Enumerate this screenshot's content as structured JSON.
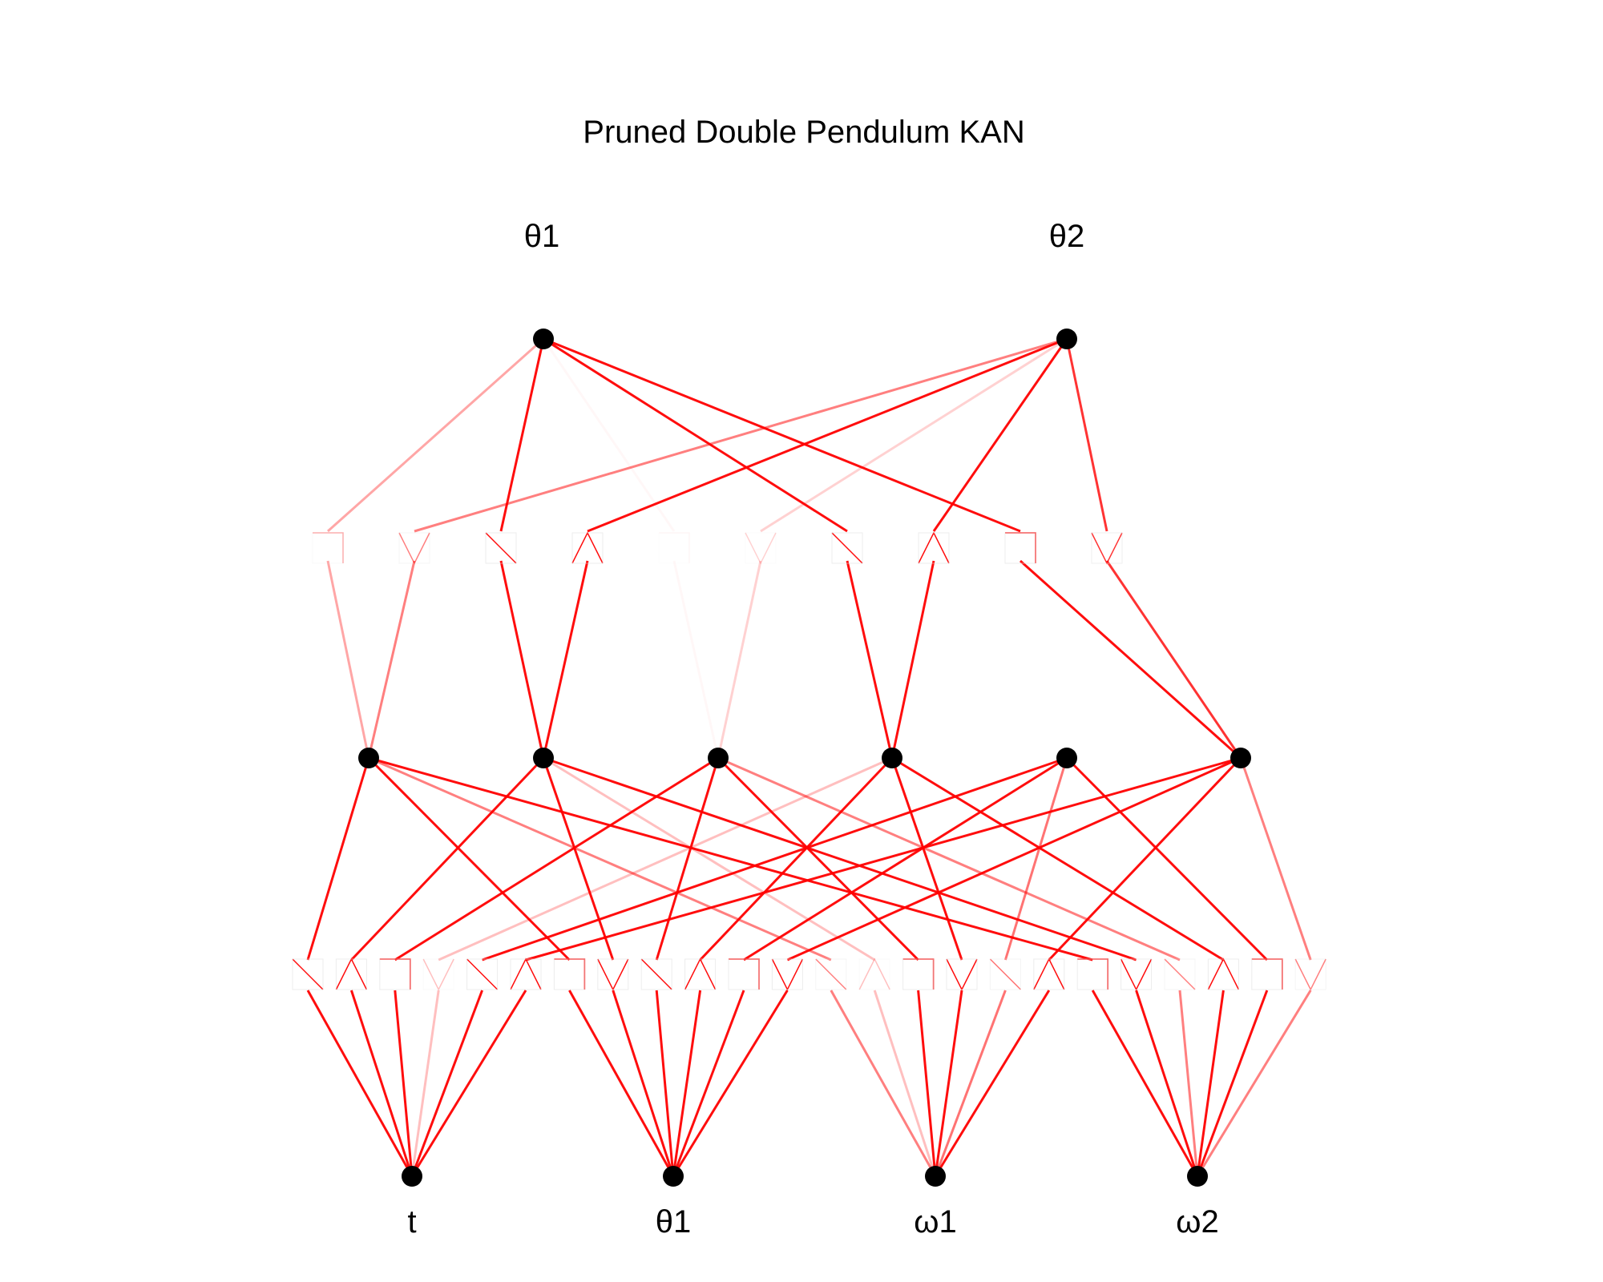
{
  "title": "Pruned Double Pendulum KAN",
  "colors": {
    "edge": "#ff0000",
    "node": "#000000",
    "background": "#ffffff"
  },
  "layers": {
    "input": [
      "t",
      "θ1",
      "ω1",
      "ω2"
    ],
    "hidden_count": 6,
    "output": [
      "θ1",
      "θ2"
    ]
  },
  "layer1_edges": [
    {
      "from": 0,
      "to": 0,
      "alpha": 0.95
    },
    {
      "from": 0,
      "to": 1,
      "alpha": 0.95
    },
    {
      "from": 0,
      "to": 2,
      "alpha": 0.95
    },
    {
      "from": 0,
      "to": 3,
      "alpha": 0.25
    },
    {
      "from": 0,
      "to": 4,
      "alpha": 0.95
    },
    {
      "from": 0,
      "to": 5,
      "alpha": 0.95
    },
    {
      "from": 1,
      "to": 0,
      "alpha": 0.95
    },
    {
      "from": 1,
      "to": 1,
      "alpha": 0.95
    },
    {
      "from": 1,
      "to": 2,
      "alpha": 0.95
    },
    {
      "from": 1,
      "to": 3,
      "alpha": 0.95
    },
    {
      "from": 1,
      "to": 4,
      "alpha": 0.95
    },
    {
      "from": 1,
      "to": 5,
      "alpha": 0.95
    },
    {
      "from": 2,
      "to": 0,
      "alpha": 0.5
    },
    {
      "from": 2,
      "to": 1,
      "alpha": 0.25
    },
    {
      "from": 2,
      "to": 2,
      "alpha": 0.95
    },
    {
      "from": 2,
      "to": 3,
      "alpha": 0.95
    },
    {
      "from": 2,
      "to": 4,
      "alpha": 0.55
    },
    {
      "from": 2,
      "to": 5,
      "alpha": 0.95
    },
    {
      "from": 3,
      "to": 0,
      "alpha": 0.95
    },
    {
      "from": 3,
      "to": 1,
      "alpha": 0.95
    },
    {
      "from": 3,
      "to": 2,
      "alpha": 0.5
    },
    {
      "from": 3,
      "to": 3,
      "alpha": 0.95
    },
    {
      "from": 3,
      "to": 4,
      "alpha": 0.95
    },
    {
      "from": 3,
      "to": 5,
      "alpha": 0.5
    }
  ],
  "layer2_edges": [
    {
      "from": 0,
      "to": 0,
      "alpha": 0.35
    },
    {
      "from": 0,
      "to": 1,
      "alpha": 0.5
    },
    {
      "from": 1,
      "to": 0,
      "alpha": 0.95
    },
    {
      "from": 1,
      "to": 1,
      "alpha": 0.95
    },
    {
      "from": 2,
      "to": 0,
      "alpha": 0.03
    },
    {
      "from": 2,
      "to": 1,
      "alpha": 0.18
    },
    {
      "from": 3,
      "to": 0,
      "alpha": 0.95
    },
    {
      "from": 3,
      "to": 1,
      "alpha": 0.95
    },
    {
      "from": 5,
      "to": 0,
      "alpha": 0.95
    },
    {
      "from": 5,
      "to": 1,
      "alpha": 0.8
    }
  ]
}
